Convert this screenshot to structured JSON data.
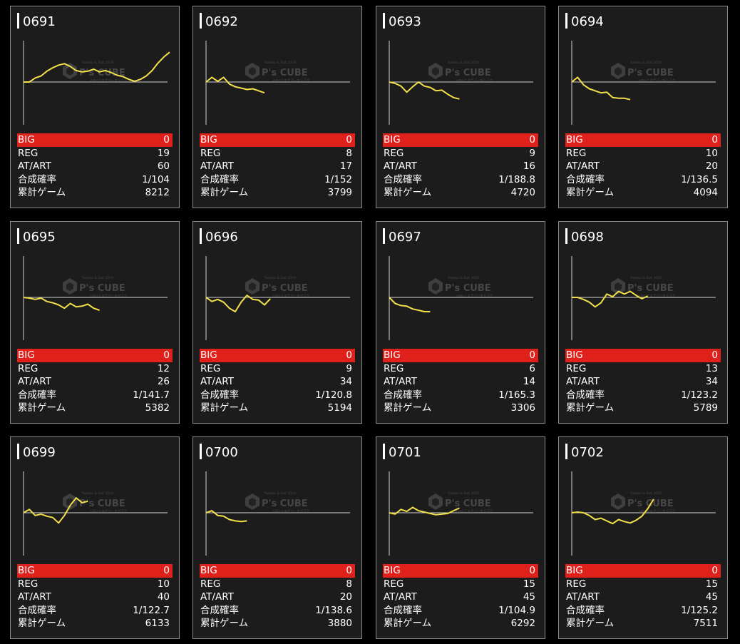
{
  "labels": {
    "big": "BIG",
    "reg": "REG",
    "at": "AT/ART",
    "prob": "合成確率",
    "games": "累計ゲーム"
  },
  "watermark": {
    "brand": "P's CUBE",
    "small_top": "Yudaku & Slot 2019",
    "small_bottom": "ndoc.f エデパーキジコク"
  },
  "colors": {
    "background": "#000000",
    "card": "#1c1c1c",
    "border": "#8a8a8a",
    "big_highlight": "#e0211b",
    "line": "#f2e04a",
    "axis": "#cfcfcf"
  },
  "machines": [
    {
      "no": "0691",
      "big": "0",
      "reg": "19",
      "at": "60",
      "prob": "1/104",
      "games": "8212",
      "trend": [
        0,
        0,
        0.6,
        0.9,
        1.6,
        2.1,
        2.5,
        2.7,
        2.3,
        1.7,
        1.5,
        1.6,
        1.9,
        1.5,
        1.7,
        1.4,
        1.0,
        0.8,
        0.4,
        0.1,
        0.4,
        0.9,
        1.7,
        2.8,
        3.7,
        4.4
      ]
    },
    {
      "no": "0692",
      "big": "0",
      "reg": "8",
      "at": "17",
      "prob": "1/152",
      "games": "3799",
      "trend": [
        0,
        0.7,
        0.1,
        0.7,
        -0.3,
        -0.7,
        -0.9,
        -1.1,
        -1.0,
        -1.3,
        -1.6
      ]
    },
    {
      "no": "0693",
      "big": "0",
      "reg": "9",
      "at": "16",
      "prob": "1/188.8",
      "games": "4720",
      "trend": [
        0,
        -0.2,
        -0.6,
        -1.5,
        -0.7,
        0,
        -0.6,
        -0.8,
        -1.3,
        -1.2,
        -1.8,
        -2.3,
        -2.5
      ]
    },
    {
      "no": "0694",
      "big": "0",
      "reg": "10",
      "at": "20",
      "prob": "1/136.5",
      "games": "4094",
      "trend": [
        0,
        0.7,
        -0.4,
        -1.0,
        -1.3,
        -1.6,
        -1.5,
        -2.3,
        -2.4,
        -2.4,
        -2.6
      ]
    },
    {
      "no": "0695",
      "big": "0",
      "reg": "12",
      "at": "26",
      "prob": "1/141.7",
      "games": "5382",
      "trend": [
        0,
        -0.1,
        -0.3,
        -0.1,
        -0.6,
        -0.8,
        -1.1,
        -1.6,
        -0.9,
        -1.4,
        -1.3,
        -1.0,
        -1.6,
        -1.9
      ]
    },
    {
      "no": "0696",
      "big": "0",
      "reg": "9",
      "at": "34",
      "prob": "1/120.8",
      "games": "5194",
      "trend": [
        0,
        -0.6,
        -0.3,
        -0.7,
        -1.6,
        -2.1,
        -0.7,
        0.3,
        -0.3,
        -0.4,
        -1.1,
        -0.2
      ]
    },
    {
      "no": "0697",
      "big": "0",
      "reg": "6",
      "at": "14",
      "prob": "1/165.3",
      "games": "3306",
      "trend": [
        0,
        -0.9,
        -1.2,
        -1.3,
        -1.7,
        -1.9,
        -2.1,
        -2.1
      ]
    },
    {
      "no": "0698",
      "big": "0",
      "reg": "13",
      "at": "34",
      "prob": "1/123.2",
      "games": "5789",
      "trend": [
        0,
        0,
        -0.3,
        -0.7,
        -1.4,
        -0.8,
        0.5,
        0.1,
        0.9,
        0.5,
        0.9,
        0.3,
        -0.2,
        0.2
      ]
    },
    {
      "no": "0699",
      "big": "0",
      "reg": "10",
      "at": "40",
      "prob": "1/122.7",
      "games": "6133",
      "trend": [
        0,
        0.5,
        -0.4,
        -0.2,
        -0.5,
        -0.7,
        -1.5,
        -0.4,
        1.1,
        2.2,
        1.5,
        1.7
      ]
    },
    {
      "no": "0700",
      "big": "0",
      "reg": "8",
      "at": "20",
      "prob": "1/138.6",
      "games": "3880",
      "trend": [
        0,
        0.3,
        -0.4,
        -0.5,
        -1.0,
        -1.2,
        -1.3,
        -1.2
      ]
    },
    {
      "no": "0701",
      "big": "0",
      "reg": "15",
      "at": "45",
      "prob": "1/104.9",
      "games": "6292",
      "trend": [
        0,
        -0.2,
        0.5,
        0.2,
        0.8,
        0.3,
        0.1,
        -0.1,
        -0.3,
        -0.2,
        -0.1,
        0.3,
        0.7
      ]
    },
    {
      "no": "0702",
      "big": "0",
      "reg": "15",
      "at": "45",
      "prob": "1/125.2",
      "games": "7511",
      "trend": [
        0,
        0.1,
        0,
        -0.4,
        -1.0,
        -0.8,
        -1.2,
        -1.6,
        -1.0,
        -1.3,
        -1.5,
        -1.1,
        -0.5,
        0.6,
        2.0
      ]
    }
  ]
}
